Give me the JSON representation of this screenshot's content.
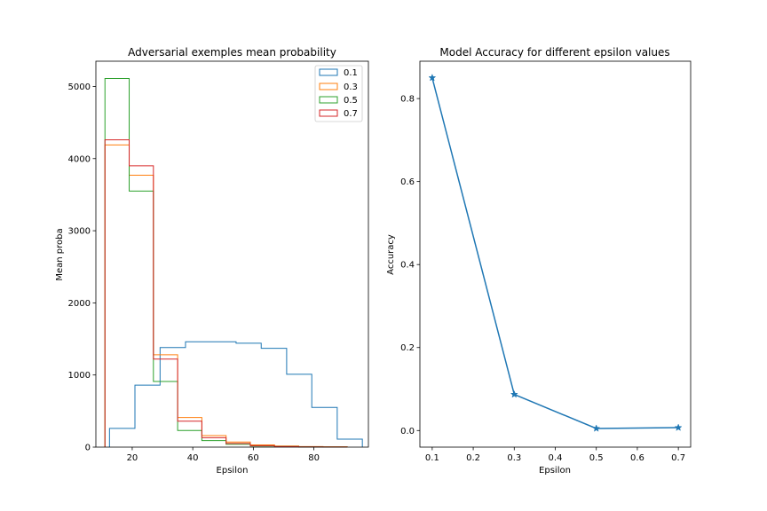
{
  "figure": {
    "background": "#ffffff"
  },
  "chart_data": [
    {
      "type": "histogram",
      "title": "Adversarial exemples mean probability",
      "xlabel": "Epsilon",
      "ylabel": "Mean proba",
      "xlim": [
        8,
        98
      ],
      "ylim": [
        0,
        5350
      ],
      "xticks": [
        20,
        40,
        60,
        80
      ],
      "yticks": [
        0,
        1000,
        2000,
        3000,
        4000,
        5000
      ],
      "histtype": "step",
      "legend": {
        "position": "top-right",
        "entries": [
          "0.1",
          "0.3",
          "0.5",
          "0.7"
        ]
      },
      "series": [
        {
          "name": "0.1",
          "color": "#1f77b4",
          "edges": [
            12.5,
            20.9,
            29.2,
            37.6,
            45.9,
            54.3,
            62.6,
            71.0,
            79.3,
            87.7,
            96.0
          ],
          "counts": [
            260,
            860,
            1380,
            1460,
            1460,
            1440,
            1370,
            1010,
            550,
            110
          ]
        },
        {
          "name": "0.3",
          "color": "#ff7f0e",
          "edges": [
            11.0,
            19.0,
            27.0,
            35.0,
            43.0,
            51.0,
            59.0,
            67.0,
            75.0,
            83.0,
            91.0
          ],
          "counts": [
            4190,
            3770,
            1280,
            410,
            160,
            70,
            30,
            15,
            8,
            4
          ]
        },
        {
          "name": "0.5",
          "color": "#2ca02c",
          "edges": [
            11.0,
            19.0,
            27.0,
            35.0,
            43.0,
            51.0,
            59.0,
            67.0,
            75.0,
            83.0,
            91.0
          ],
          "counts": [
            5110,
            3550,
            910,
            230,
            90,
            40,
            15,
            8,
            3,
            1
          ]
        },
        {
          "name": "0.7",
          "color": "#d62728",
          "edges": [
            11.0,
            19.0,
            27.0,
            35.0,
            43.0,
            51.0,
            59.0,
            67.0,
            75.0,
            83.0,
            91.0
          ],
          "counts": [
            4260,
            3900,
            1220,
            360,
            130,
            50,
            20,
            8,
            3,
            1
          ]
        }
      ]
    },
    {
      "type": "line",
      "title": "Model Accuracy for different epsilon values",
      "xlabel": "Epsilon",
      "ylabel": "Accuracy",
      "xlim": [
        0.07,
        0.73
      ],
      "ylim": [
        -0.04,
        0.89
      ],
      "xticks": [
        "0.1",
        "0.2",
        "0.3",
        "0.4",
        "0.5",
        "0.6",
        "0.7"
      ],
      "yticks": [
        "0.0",
        "0.2",
        "0.4",
        "0.6",
        "0.8"
      ],
      "marker": "star",
      "series": [
        {
          "color": "#1f77b4",
          "x": [
            0.1,
            0.3,
            0.5,
            0.7
          ],
          "y": [
            0.85,
            0.087,
            0.005,
            0.007
          ]
        }
      ]
    }
  ]
}
